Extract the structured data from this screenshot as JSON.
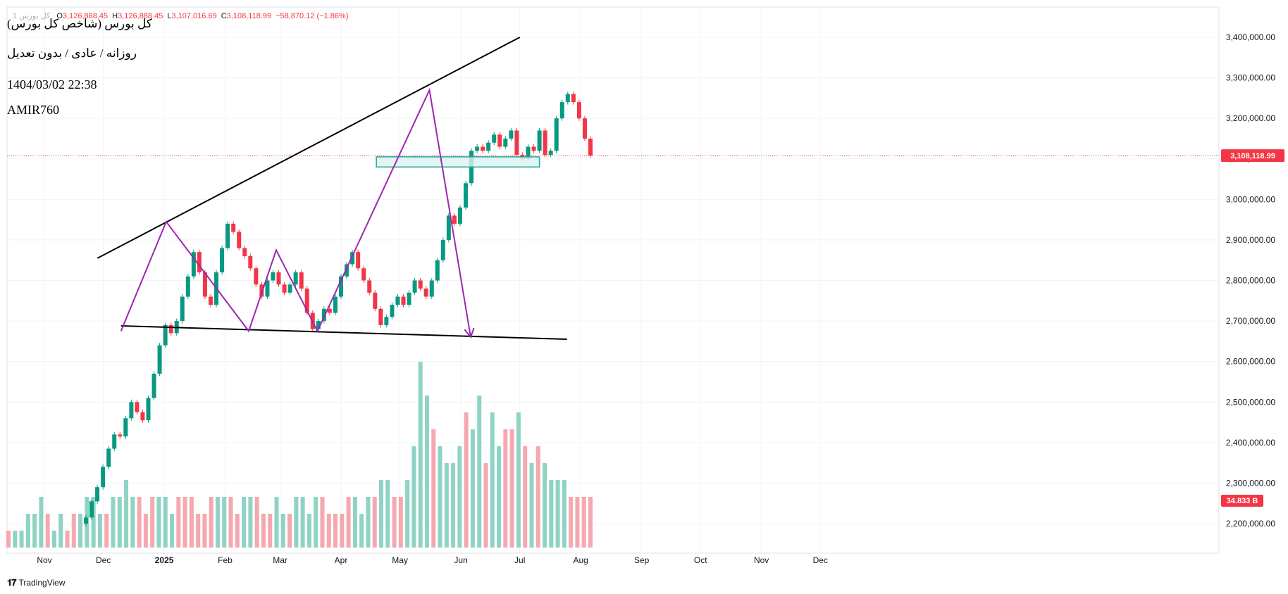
{
  "header": {
    "symbol_row": "1 کل بورس",
    "ohlc": [
      {
        "k": "O",
        "v": "3,126,888.45"
      },
      {
        "k": "H",
        "v": "3,126,888.45"
      },
      {
        "k": "L",
        "v": "3,107,016.69"
      },
      {
        "k": "C",
        "v": "3,108,118.99"
      },
      {
        "k": "",
        "v": "−58,870.12 (−1.86%)"
      }
    ],
    "title": "کل بورس (شاخص کل بورس)",
    "subtitle": "روزانه / عادی / بدون تعدیل",
    "datetime": "1404/03/02 22:38",
    "author": "AMIR760"
  },
  "price_badge": {
    "text": "3,108,118.99",
    "color": "#f23645"
  },
  "volume_badge": {
    "text": "34.833 B",
    "color": "#f23645"
  },
  "brand": {
    "name": "TradingView"
  },
  "colors": {
    "up": "#089981",
    "down": "#f23645",
    "vol_up": "#8fd3c4",
    "vol_down": "#f5a8b0",
    "pattern": "#9c27b0",
    "trend": "#000000",
    "zone_fill": "#d9f3ef",
    "zone_stroke": "#26a69a"
  },
  "chart_data": {
    "type": "candlestick",
    "y_axis": {
      "ticks": [
        2200000,
        2300000,
        2400000,
        2500000,
        2600000,
        2700000,
        2800000,
        2900000,
        3000000,
        3100000,
        3200000,
        3300000,
        3400000
      ],
      "tick_labels": [
        "2,200,000.00",
        "2,300,000.00",
        "2,400,000.00",
        "2,500,000.00",
        "2,600,000.00",
        "2,700,000.00",
        "2,800,000.00",
        "2,900,000.00",
        "3,000,000.00",
        "3,100,000.00",
        "3,200,000.00",
        "3,300,000.00",
        "3,400,000.00"
      ],
      "range": [
        2170000,
        3460000
      ]
    },
    "x_axis": {
      "labels": [
        "Nov",
        "Dec",
        "2025",
        "Feb",
        "Mar",
        "Apr",
        "May",
        "Jun",
        "Jul",
        "Aug",
        "Sep",
        "Oct",
        "Nov",
        "Dec"
      ],
      "dates": [
        "2024-11-01",
        "2024-12-01",
        "2025-01-01",
        "2025-02-01",
        "2025-03-01",
        "2025-04-01",
        "2025-05-01",
        "2025-06-01",
        "2025-07-01",
        "2025-08-01",
        "2025-09-01",
        "2025-10-01",
        "2025-11-01",
        "2025-12-01"
      ]
    },
    "last_close": 3108118.99,
    "closes": [
      2215000,
      2255000,
      2290000,
      2340000,
      2385000,
      2420000,
      2415000,
      2460000,
      2500000,
      2475000,
      2455000,
      2510000,
      2570000,
      2640000,
      2690000,
      2670000,
      2700000,
      2760000,
      2810000,
      2870000,
      2820000,
      2760000,
      2740000,
      2820000,
      2880000,
      2940000,
      2920000,
      2880000,
      2860000,
      2830000,
      2790000,
      2760000,
      2800000,
      2820000,
      2790000,
      2770000,
      2790000,
      2820000,
      2780000,
      2720000,
      2680000,
      2700000,
      2730000,
      2720000,
      2760000,
      2810000,
      2840000,
      2870000,
      2830000,
      2800000,
      2770000,
      2730000,
      2690000,
      2710000,
      2740000,
      2760000,
      2740000,
      2770000,
      2800000,
      2780000,
      2760000,
      2800000,
      2850000,
      2900000,
      2960000,
      2940000,
      2980000,
      3040000,
      3120000,
      3130000,
      3120000,
      3140000,
      3160000,
      3130000,
      3150000,
      3170000,
      3110000,
      3100000,
      3130000,
      3120000,
      3170000,
      3110000,
      3120000,
      3200000,
      3240000,
      3260000,
      3240000,
      3200000,
      3150000,
      3108119
    ],
    "volumes": [
      1,
      1,
      1,
      2,
      2,
      3,
      2,
      1,
      2,
      1,
      2,
      2,
      3,
      3,
      2,
      2,
      3,
      3,
      4,
      3,
      3,
      2,
      3,
      3,
      3,
      2,
      3,
      3,
      3,
      2,
      2,
      3,
      3,
      3,
      3,
      2,
      3,
      3,
      3,
      2,
      2,
      3,
      2,
      2,
      3,
      3,
      2,
      3,
      3,
      2,
      2,
      2,
      3,
      3,
      2,
      3,
      3,
      4,
      4,
      3,
      3,
      4,
      6,
      11,
      9,
      7,
      6,
      5,
      5,
      6,
      8,
      7,
      9,
      5,
      8,
      6,
      7,
      7,
      8,
      6,
      5,
      6,
      5,
      4,
      4,
      4,
      3,
      3,
      3,
      3
    ],
    "trendline_upper": [
      {
        "x": "2024-11-28",
        "y": 2855000
      },
      {
        "x": "2025-07-01",
        "y": 3400000
      }
    ],
    "trendline_lower": [
      {
        "x": "2024-12-10",
        "y": 2688000
      },
      {
        "x": "2025-07-25",
        "y": 2655000
      }
    ],
    "zigzag": [
      {
        "x": "2024-12-10",
        "y": 2675000
      },
      {
        "x": "2025-01-02",
        "y": 2945000
      },
      {
        "x": "2025-02-13",
        "y": 2675000
      },
      {
        "x": "2025-02-27",
        "y": 2875000
      },
      {
        "x": "2025-03-20",
        "y": 2675000
      },
      {
        "x": "2025-05-16",
        "y": 3270000
      },
      {
        "x": "2025-06-06",
        "y": 2660000
      }
    ],
    "zone": {
      "x0": "2025-04-19",
      "x1": "2025-07-11",
      "y0": 3080000,
      "y1": 3105000
    }
  }
}
